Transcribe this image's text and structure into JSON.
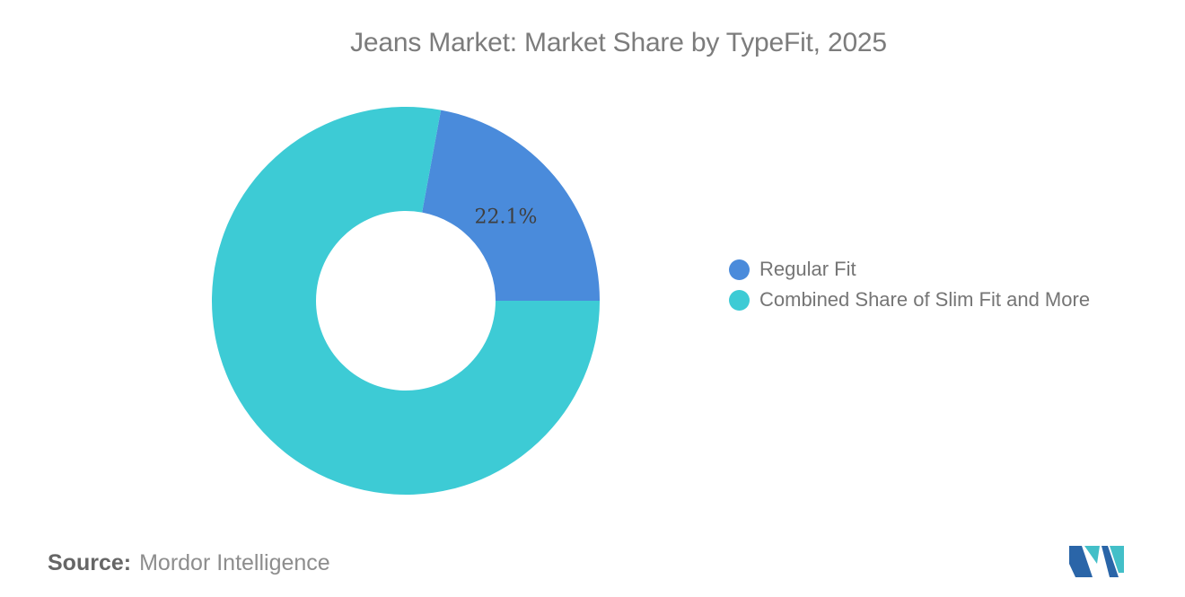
{
  "chart_data": {
    "type": "pie",
    "subtype": "donut",
    "title": "Jeans Market: Market Share by TypeFit, 2025",
    "series": [
      {
        "name": "Regular Fit",
        "value": 22.1,
        "color": "#4A8BDB",
        "data_label": "22.1%"
      },
      {
        "name": "Combined Share of Slim Fit and More",
        "value": 77.9,
        "color": "#3DCBD5",
        "data_label": ""
      }
    ],
    "total": 100,
    "rotation_deg": 10.44,
    "inner_radius_ratio": 0.462,
    "legend_position": "right",
    "data_label_color": "#3F3F3F",
    "background": "#FFFFFF"
  },
  "footer": {
    "source_label": "Source:",
    "source_value": "Mordor Intelligence"
  },
  "logo": {
    "name": "Mordor Intelligence logo",
    "colors": {
      "primary": "#2A65A8",
      "secondary": "#43BFC8"
    }
  }
}
